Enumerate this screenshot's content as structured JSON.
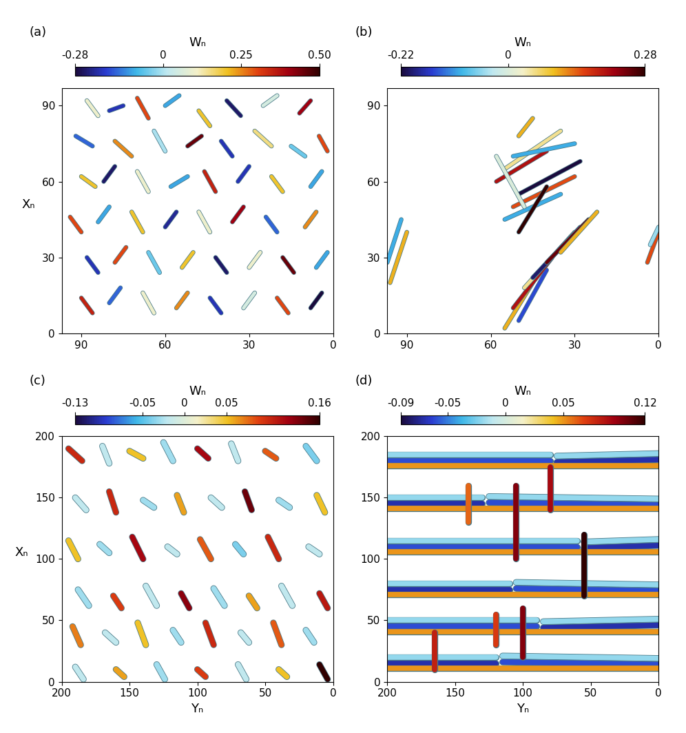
{
  "chart_data": [
    {
      "type": "structures",
      "panel": "(a)",
      "colorbar_label": "Wₙ",
      "clim": [
        -0.28,
        0.5
      ],
      "cticks": [
        -0.28,
        0,
        0.25,
        {
          "value": 0.5,
          "label": "0.50"
        }
      ],
      "ylabel": "Xₙ",
      "xlim": [
        97,
        0
      ],
      "ylim": [
        0,
        97
      ],
      "xticks": [
        90,
        60,
        30,
        0
      ],
      "yticks": [
        0,
        30,
        60,
        90
      ],
      "structures": [
        [
          88,
          92,
          84,
          86,
          0.1
        ],
        [
          80,
          88,
          75,
          90,
          -0.2
        ],
        [
          70,
          93,
          66,
          85,
          0.3
        ],
        [
          60,
          90,
          55,
          94,
          -0.1
        ],
        [
          48,
          88,
          44,
          82,
          0.2
        ],
        [
          38,
          92,
          33,
          86,
          -0.25
        ],
        [
          25,
          90,
          20,
          94,
          0.05
        ],
        [
          12,
          87,
          8,
          92,
          0.4
        ],
        [
          92,
          78,
          86,
          74,
          -0.15
        ],
        [
          78,
          76,
          72,
          70,
          0.25
        ],
        [
          64,
          80,
          60,
          72,
          0.0
        ],
        [
          52,
          74,
          47,
          78,
          0.45
        ],
        [
          40,
          76,
          36,
          70,
          -0.2
        ],
        [
          28,
          80,
          22,
          74,
          0.15
        ],
        [
          15,
          74,
          10,
          70,
          -0.05
        ],
        [
          5,
          78,
          2,
          72,
          0.3
        ],
        [
          90,
          62,
          85,
          58,
          0.2
        ],
        [
          82,
          60,
          78,
          66,
          -0.25
        ],
        [
          70,
          64,
          66,
          56,
          0.1
        ],
        [
          58,
          58,
          52,
          62,
          -0.1
        ],
        [
          46,
          64,
          42,
          56,
          0.35
        ],
        [
          34,
          60,
          30,
          66,
          -0.2
        ],
        [
          22,
          62,
          18,
          56,
          0.2
        ],
        [
          8,
          58,
          4,
          64,
          -0.1
        ],
        [
          94,
          46,
          90,
          40,
          0.3
        ],
        [
          84,
          44,
          80,
          50,
          -0.1
        ],
        [
          72,
          48,
          68,
          40,
          0.2
        ],
        [
          60,
          42,
          56,
          48,
          -0.22
        ],
        [
          48,
          48,
          44,
          40,
          0.1
        ],
        [
          36,
          44,
          32,
          50,
          0.4
        ],
        [
          24,
          46,
          20,
          40,
          -0.15
        ],
        [
          10,
          42,
          6,
          48,
          0.25
        ],
        [
          88,
          30,
          84,
          24,
          -0.2
        ],
        [
          78,
          28,
          74,
          34,
          0.3
        ],
        [
          66,
          32,
          62,
          24,
          -0.05
        ],
        [
          54,
          26,
          50,
          32,
          0.2
        ],
        [
          42,
          30,
          38,
          24,
          -0.25
        ],
        [
          30,
          26,
          26,
          32,
          0.1
        ],
        [
          18,
          30,
          14,
          24,
          0.45
        ],
        [
          6,
          26,
          2,
          32,
          -0.1
        ],
        [
          90,
          14,
          86,
          8,
          0.35
        ],
        [
          80,
          12,
          76,
          18,
          -0.15
        ],
        [
          68,
          16,
          64,
          8,
          0.1
        ],
        [
          56,
          10,
          52,
          16,
          0.25
        ],
        [
          44,
          14,
          40,
          8,
          -0.2
        ],
        [
          32,
          10,
          28,
          16,
          0.05
        ],
        [
          20,
          14,
          16,
          8,
          0.3
        ],
        [
          8,
          10,
          4,
          16,
          -0.28
        ]
      ]
    },
    {
      "type": "structures",
      "panel": "(b)",
      "colorbar_label": "Wₙ",
      "clim": [
        -0.22,
        0.28
      ],
      "cticks": [
        -0.22,
        0,
        0.28
      ],
      "xlim": [
        97,
        0
      ],
      "ylim": [
        0,
        97
      ],
      "xticks": [
        90,
        60,
        30,
        0
      ],
      "yticks": [
        0,
        30,
        60,
        90
      ],
      "structures": [
        [
          55,
          2,
          45,
          20,
          0.1
        ],
        [
          50,
          5,
          40,
          25,
          -0.15
        ],
        [
          52,
          10,
          38,
          30,
          0.2
        ],
        [
          48,
          18,
          30,
          40,
          0.05
        ],
        [
          45,
          22,
          28,
          42,
          -0.2
        ],
        [
          40,
          28,
          25,
          45,
          0.25
        ],
        [
          35,
          32,
          22,
          48,
          0.1
        ],
        [
          55,
          45,
          35,
          55,
          -0.1
        ],
        [
          52,
          50,
          30,
          62,
          0.15
        ],
        [
          50,
          55,
          28,
          68,
          -0.22
        ],
        [
          58,
          60,
          40,
          72,
          0.2
        ],
        [
          55,
          65,
          35,
          80,
          0.05
        ],
        [
          52,
          70,
          30,
          75,
          -0.1
        ],
        [
          50,
          78,
          45,
          85,
          0.1
        ],
        [
          48,
          50,
          58,
          70,
          0.0
        ],
        [
          50,
          40,
          40,
          58,
          0.28
        ],
        [
          96,
          20,
          90,
          40,
          0.1
        ],
        [
          97,
          28,
          92,
          45,
          -0.1
        ],
        [
          4,
          28,
          0,
          40,
          0.15
        ],
        [
          3,
          35,
          0,
          42,
          -0.05
        ]
      ]
    },
    {
      "type": "structures",
      "panel": "(c)",
      "colorbar_label": "Wₙ",
      "clim": [
        -0.13,
        0.16
      ],
      "cticks": [
        -0.13,
        -0.05,
        0,
        0.05,
        0.16
      ],
      "xlabel": "Yₙ",
      "ylabel": "Xₙ",
      "xlim": [
        200,
        0
      ],
      "ylim": [
        0,
        200
      ],
      "xticks": [
        200,
        150,
        100,
        50,
        0
      ],
      "yticks": [
        0,
        50,
        100,
        150,
        200
      ],
      "structures": [
        [
          195,
          190,
          185,
          180,
          0.1
        ],
        [
          170,
          192,
          165,
          178,
          -0.02
        ],
        [
          150,
          188,
          140,
          182,
          0.05
        ],
        [
          125,
          195,
          118,
          180,
          -0.03
        ],
        [
          100,
          190,
          92,
          182,
          0.12
        ],
        [
          75,
          194,
          70,
          180,
          -0.02
        ],
        [
          50,
          188,
          42,
          182,
          0.08
        ],
        [
          20,
          192,
          12,
          180,
          -0.04
        ],
        [
          190,
          150,
          182,
          140,
          -0.02
        ],
        [
          165,
          155,
          160,
          138,
          0.1
        ],
        [
          140,
          148,
          132,
          142,
          -0.03
        ],
        [
          115,
          152,
          110,
          138,
          0.06
        ],
        [
          90,
          150,
          82,
          142,
          -0.02
        ],
        [
          65,
          155,
          60,
          140,
          0.14
        ],
        [
          40,
          148,
          32,
          142,
          -0.03
        ],
        [
          12,
          152,
          6,
          138,
          0.05
        ],
        [
          195,
          115,
          188,
          100,
          0.05
        ],
        [
          172,
          112,
          165,
          105,
          -0.03
        ],
        [
          148,
          118,
          140,
          100,
          0.12
        ],
        [
          122,
          110,
          115,
          104,
          -0.02
        ],
        [
          98,
          116,
          90,
          100,
          0.08
        ],
        [
          72,
          112,
          66,
          104,
          -0.04
        ],
        [
          48,
          118,
          40,
          100,
          0.1
        ],
        [
          18,
          110,
          10,
          104,
          -0.02
        ],
        [
          188,
          75,
          180,
          62,
          -0.03
        ],
        [
          162,
          70,
          156,
          60,
          0.09
        ],
        [
          138,
          78,
          130,
          62,
          -0.02
        ],
        [
          112,
          72,
          106,
          60,
          0.13
        ],
        [
          88,
          76,
          80,
          62,
          -0.03
        ],
        [
          62,
          70,
          56,
          60,
          0.06
        ],
        [
          38,
          78,
          30,
          62,
          -0.02
        ],
        [
          10,
          72,
          4,
          60,
          0.11
        ],
        [
          192,
          45,
          186,
          30,
          0.07
        ],
        [
          168,
          40,
          160,
          32,
          -0.02
        ],
        [
          144,
          48,
          138,
          30,
          0.05
        ],
        [
          118,
          42,
          112,
          32,
          -0.03
        ],
        [
          94,
          48,
          88,
          30,
          0.1
        ],
        [
          68,
          40,
          62,
          32,
          -0.02
        ],
        [
          44,
          48,
          38,
          30,
          0.08
        ],
        [
          20,
          42,
          14,
          32,
          -0.03
        ],
        [
          190,
          12,
          184,
          2,
          -0.02
        ],
        [
          160,
          10,
          154,
          4,
          0.06
        ],
        [
          130,
          14,
          124,
          2,
          -0.03
        ],
        [
          100,
          10,
          94,
          4,
          0.09
        ],
        [
          70,
          14,
          64,
          2,
          -0.02
        ],
        [
          40,
          10,
          34,
          4,
          0.05
        ],
        [
          10,
          14,
          4,
          2,
          0.16
        ]
      ]
    },
    {
      "type": "structures",
      "panel": "(d)",
      "colorbar_label": "Wₙ",
      "clim": [
        -0.09,
        0.12
      ],
      "cticks": [
        -0.09,
        -0.05,
        0,
        0.05,
        0.12
      ],
      "xlabel": "Yₙ",
      "xlim": [
        200,
        0
      ],
      "ylim": [
        0,
        200
      ],
      "xticks": [
        200,
        150,
        100,
        50,
        0
      ],
      "yticks": [
        0,
        50,
        100,
        150,
        200
      ],
      "structures": [
        [
          200,
          20,
          120,
          20,
          -0.02
        ],
        [
          115,
          21,
          0,
          19,
          -0.02
        ],
        [
          200,
          15,
          120,
          15,
          -0.07
        ],
        [
          115,
          16,
          0,
          14,
          -0.06
        ],
        [
          200,
          11,
          0,
          11,
          0.05
        ],
        [
          200,
          50,
          90,
          50,
          -0.02
        ],
        [
          85,
          49,
          0,
          51,
          -0.02
        ],
        [
          200,
          45,
          90,
          45,
          -0.06
        ],
        [
          85,
          44,
          0,
          46,
          -0.07
        ],
        [
          200,
          41,
          0,
          41,
          0.05
        ],
        [
          200,
          80,
          110,
          80,
          -0.02
        ],
        [
          105,
          81,
          0,
          79,
          -0.02
        ],
        [
          200,
          75,
          110,
          75,
          -0.07
        ],
        [
          105,
          76,
          0,
          74,
          -0.06
        ],
        [
          200,
          71,
          0,
          71,
          0.05
        ],
        [
          200,
          115,
          60,
          115,
          -0.02
        ],
        [
          55,
          114,
          0,
          116,
          -0.02
        ],
        [
          200,
          110,
          60,
          110,
          -0.06
        ],
        [
          55,
          109,
          0,
          111,
          -0.07
        ],
        [
          200,
          106,
          0,
          106,
          0.05
        ],
        [
          200,
          150,
          130,
          150,
          -0.02
        ],
        [
          125,
          151,
          0,
          149,
          -0.02
        ],
        [
          200,
          145,
          130,
          145,
          -0.07
        ],
        [
          125,
          146,
          0,
          144,
          -0.06
        ],
        [
          200,
          141,
          0,
          141,
          0.05
        ],
        [
          200,
          185,
          80,
          185,
          -0.02
        ],
        [
          75,
          184,
          0,
          186,
          -0.02
        ],
        [
          200,
          180,
          80,
          180,
          -0.06
        ],
        [
          75,
          179,
          0,
          181,
          -0.07
        ],
        [
          200,
          176,
          0,
          176,
          0.05
        ],
        [
          100,
          20,
          100,
          60,
          0.1
        ],
        [
          55,
          70,
          55,
          120,
          0.12
        ],
        [
          105,
          100,
          105,
          160,
          0.1
        ],
        [
          165,
          10,
          165,
          40,
          0.08
        ],
        [
          140,
          130,
          140,
          160,
          0.06
        ],
        [
          80,
          140,
          80,
          175,
          0.09
        ],
        [
          120,
          30,
          120,
          55,
          0.07
        ]
      ]
    }
  ]
}
